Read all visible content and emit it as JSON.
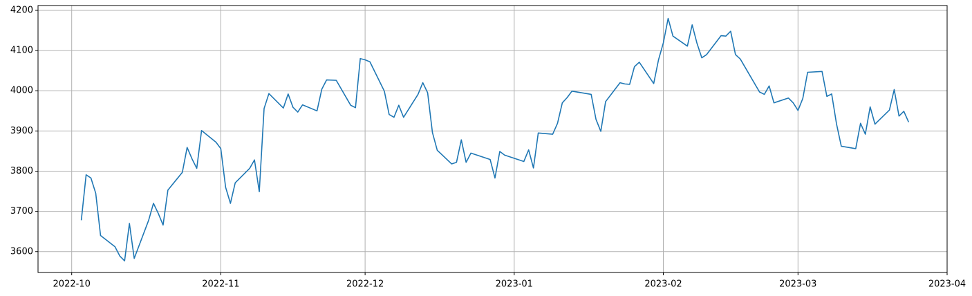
{
  "chart_data": {
    "type": "line",
    "color": "#1f77b4",
    "grid": true,
    "xlim": [
      "2022-09-24",
      "2023-04-01"
    ],
    "xticks": [
      {
        "value": "2022-10-01",
        "label": "2022-10"
      },
      {
        "value": "2022-11-01",
        "label": "2022-11"
      },
      {
        "value": "2022-12-01",
        "label": "2022-12"
      },
      {
        "value": "2023-01-01",
        "label": "2023-01"
      },
      {
        "value": "2023-02-01",
        "label": "2023-02"
      },
      {
        "value": "2023-03-01",
        "label": "2023-03"
      },
      {
        "value": "2023-04-01",
        "label": "2023-04"
      }
    ],
    "ylim": [
      3548,
      4212
    ],
    "yticks": [
      3600,
      3700,
      3800,
      3900,
      4000,
      4100,
      4200
    ],
    "x": [
      "2022-10-03",
      "2022-10-04",
      "2022-10-05",
      "2022-10-06",
      "2022-10-07",
      "2022-10-10",
      "2022-10-11",
      "2022-10-12",
      "2022-10-13",
      "2022-10-14",
      "2022-10-17",
      "2022-10-18",
      "2022-10-19",
      "2022-10-20",
      "2022-10-21",
      "2022-10-24",
      "2022-10-25",
      "2022-10-26",
      "2022-10-27",
      "2022-10-28",
      "2022-10-31",
      "2022-11-01",
      "2022-11-02",
      "2022-11-03",
      "2022-11-04",
      "2022-11-07",
      "2022-11-08",
      "2022-11-09",
      "2022-11-10",
      "2022-11-11",
      "2022-11-14",
      "2022-11-15",
      "2022-11-16",
      "2022-11-17",
      "2022-11-18",
      "2022-11-21",
      "2022-11-22",
      "2022-11-23",
      "2022-11-25",
      "2022-11-28",
      "2022-11-29",
      "2022-11-30",
      "2022-12-01",
      "2022-12-02",
      "2022-12-05",
      "2022-12-06",
      "2022-12-07",
      "2022-12-08",
      "2022-12-09",
      "2022-12-12",
      "2022-12-13",
      "2022-12-14",
      "2022-12-15",
      "2022-12-16",
      "2022-12-19",
      "2022-12-20",
      "2022-12-21",
      "2022-12-22",
      "2022-12-23",
      "2022-12-27",
      "2022-12-28",
      "2022-12-29",
      "2022-12-30",
      "2023-01-03",
      "2023-01-04",
      "2023-01-05",
      "2023-01-06",
      "2023-01-09",
      "2023-01-10",
      "2023-01-11",
      "2023-01-12",
      "2023-01-13",
      "2023-01-17",
      "2023-01-18",
      "2023-01-19",
      "2023-01-20",
      "2023-01-23",
      "2023-01-24",
      "2023-01-25",
      "2023-01-26",
      "2023-01-27",
      "2023-01-30",
      "2023-01-31",
      "2023-02-01",
      "2023-02-02",
      "2023-02-03",
      "2023-02-06",
      "2023-02-07",
      "2023-02-08",
      "2023-02-09",
      "2023-02-10",
      "2023-02-13",
      "2023-02-14",
      "2023-02-15",
      "2023-02-16",
      "2023-02-17",
      "2023-02-21",
      "2023-02-22",
      "2023-02-23",
      "2023-02-24",
      "2023-02-27",
      "2023-02-28",
      "2023-03-01",
      "2023-03-02",
      "2023-03-03",
      "2023-03-06",
      "2023-03-07",
      "2023-03-08",
      "2023-03-09",
      "2023-03-10",
      "2023-03-13",
      "2023-03-14",
      "2023-03-15",
      "2023-03-16",
      "2023-03-17",
      "2023-03-20",
      "2023-03-21",
      "2023-03-22",
      "2023-03-23",
      "2023-03-24"
    ],
    "values": [
      3678,
      3791,
      3783,
      3745,
      3640,
      3612,
      3589,
      3577,
      3670,
      3583,
      3678,
      3720,
      3695,
      3666,
      3753,
      3797,
      3859,
      3831,
      3807,
      3901,
      3872,
      3856,
      3760,
      3720,
      3771,
      3807,
      3828,
      3749,
      3956,
      3993,
      3957,
      3992,
      3959,
      3947,
      3965,
      3950,
      4004,
      4027,
      4026,
      3964,
      3958,
      4080,
      4077,
      4072,
      3999,
      3941,
      3934,
      3964,
      3934,
      3991,
      4020,
      3995,
      3896,
      3852,
      3818,
      3822,
      3878,
      3822,
      3845,
      3829,
      3783,
      3849,
      3840,
      3824,
      3853,
      3808,
      3895,
      3892,
      3919,
      3970,
      3983,
      3999,
      3991,
      3929,
      3899,
      3973,
      4020,
      4017,
      4016,
      4060,
      4071,
      4018,
      4077,
      4119,
      4180,
      4136,
      4111,
      4164,
      4118,
      4082,
      4090,
      4137,
      4136,
      4148,
      4090,
      4079,
      3997,
      3991,
      4012,
      3970,
      3982,
      3970,
      3951,
      3981,
      4046,
      4048,
      3986,
      3992,
      3918,
      3862,
      3856,
      3919,
      3892,
      3960,
      3917,
      3952,
      4003,
      3937,
      3949,
      3922
    ]
  }
}
